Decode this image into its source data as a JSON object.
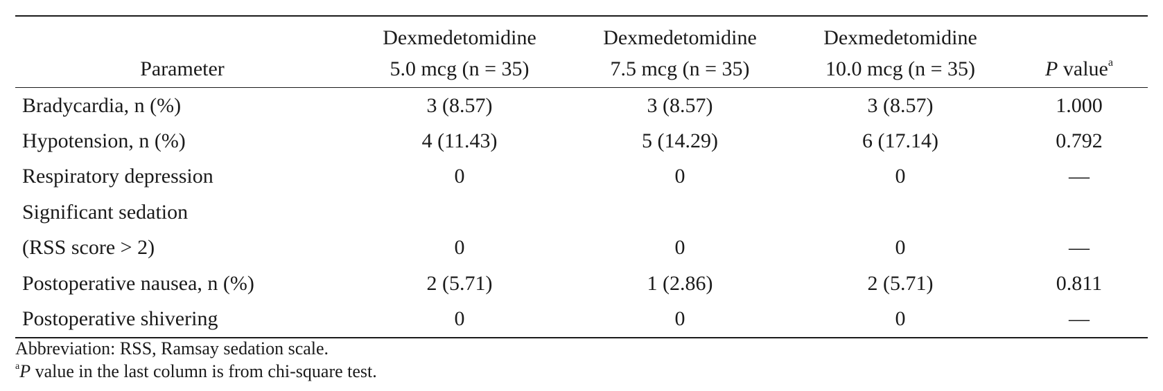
{
  "table": {
    "headers": {
      "parameter": "Parameter",
      "groups": [
        {
          "line1": "Dexmedetomidine",
          "line2": "5.0 mcg (n = 35)"
        },
        {
          "line1": "Dexmedetomidine",
          "line2": "7.5 mcg (n = 35)"
        },
        {
          "line1": "Dexmedetomidine",
          "line2": "10.0 mcg (n = 35)"
        }
      ],
      "p_value": {
        "italic": "P",
        "rest": " value",
        "sup": "a"
      }
    },
    "rows": [
      {
        "param": "Bradycardia, n (%)",
        "g1": "3 (8.57)",
        "g2": "3 (8.57)",
        "g3": "3 (8.57)",
        "p": "1.000"
      },
      {
        "param": "Hypotension, n (%)",
        "g1": "4 (11.43)",
        "g2": "5 (14.29)",
        "g3": "6 (17.14)",
        "p": "0.792"
      },
      {
        "param": "Respiratory depression",
        "g1": "0",
        "g2": "0",
        "g3": "0",
        "p": "—"
      },
      {
        "param": "Significant sedation",
        "g1": "",
        "g2": "",
        "g3": "",
        "p": ""
      },
      {
        "param": "(RSS score > 2)",
        "g1": "0",
        "g2": "0",
        "g3": "0",
        "p": "—"
      },
      {
        "param": "Postoperative nausea, n (%)",
        "g1": "2 (5.71)",
        "g2": "1 (2.86)",
        "g3": "2 (5.71)",
        "p": "0.811"
      },
      {
        "param": "Postoperative shivering",
        "g1": "0",
        "g2": "0",
        "g3": "0",
        "p": "—"
      }
    ]
  },
  "footnotes": {
    "abbreviation": "Abbreviation: RSS, Ramsay sedation scale.",
    "p_note": {
      "sup": "a",
      "italic": "P",
      "rest": " value in the last column is from chi-square test."
    }
  }
}
